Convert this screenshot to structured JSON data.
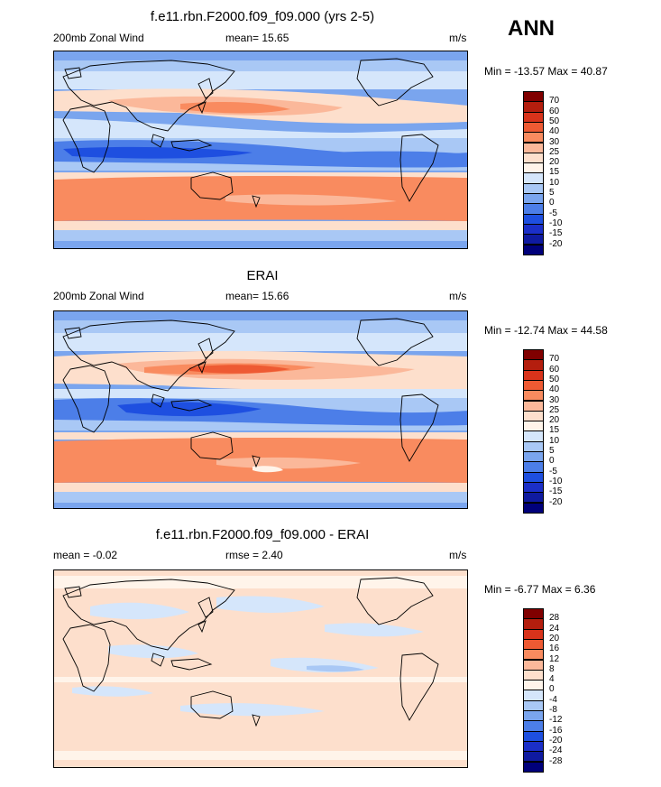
{
  "season": "ANN",
  "panels": [
    {
      "title": "f.e11.rbn.F2000.f09_f09.000 (yrs 2-5)",
      "left_label": "200mb Zonal Wind",
      "stat_label": "mean=  15.65",
      "units": "m/s",
      "minmax": "Min = -13.57 Max =  40.87",
      "colorbar": {
        "colors": [
          "#800000",
          "#b41e0e",
          "#d8331b",
          "#ee5a33",
          "#f98b5f",
          "#fbb89a",
          "#fddfcc",
          "#fff4ea",
          "#d5e6fb",
          "#a9c8f5",
          "#7aa5ee",
          "#4c7ee8",
          "#1e4fe0",
          "#1b2fc8",
          "#0f1aa0",
          "#00007a"
        ],
        "ticks": [
          "70",
          "60",
          "50",
          "40",
          "30",
          "25",
          "20",
          "15",
          "10",
          "5",
          "0",
          "-5",
          "-10",
          "-15",
          "-20"
        ]
      }
    },
    {
      "title": "ERAI",
      "left_label": "200mb Zonal Wind",
      "stat_label": "mean=  15.66",
      "units": "m/s",
      "minmax": "Min = -12.74 Max =  44.58",
      "colorbar": {
        "colors": [
          "#800000",
          "#b41e0e",
          "#d8331b",
          "#ee5a33",
          "#f98b5f",
          "#fbb89a",
          "#fddfcc",
          "#fff4ea",
          "#d5e6fb",
          "#a9c8f5",
          "#7aa5ee",
          "#4c7ee8",
          "#1e4fe0",
          "#1b2fc8",
          "#0f1aa0",
          "#00007a"
        ],
        "ticks": [
          "70",
          "60",
          "50",
          "40",
          "30",
          "25",
          "20",
          "15",
          "10",
          "5",
          "0",
          "-5",
          "-10",
          "-15",
          "-20"
        ]
      }
    },
    {
      "title": "f.e11.rbn.F2000.f09_f09.000 - ERAI",
      "left_label": "mean =  -0.02",
      "stat_label": "rmse =   2.40",
      "units": "m/s",
      "minmax": "Min =  -6.77 Max =   6.36",
      "colorbar": {
        "colors": [
          "#800000",
          "#b41e0e",
          "#d8331b",
          "#ee5a33",
          "#f98b5f",
          "#fbb89a",
          "#fddfcc",
          "#fff4ea",
          "#d5e6fb",
          "#a9c8f5",
          "#7aa5ee",
          "#4c7ee8",
          "#1e4fe0",
          "#1b2fc8",
          "#0f1aa0",
          "#00007a"
        ],
        "ticks": [
          "28",
          "24",
          "20",
          "16",
          "12",
          "8",
          "4",
          "0",
          "-4",
          "-8",
          "-12",
          "-16",
          "-20",
          "-24",
          "-28"
        ]
      }
    }
  ]
}
